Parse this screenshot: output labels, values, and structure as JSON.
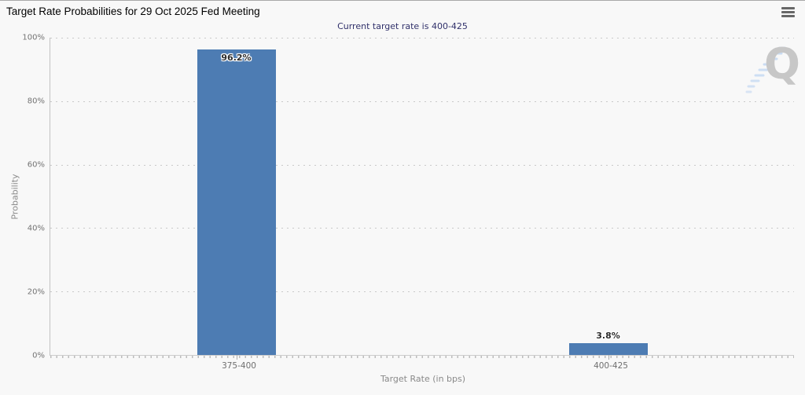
{
  "toolbar": {
    "menu_icon": "hamburger-menu-icon"
  },
  "watermark": {
    "letter": "Q"
  },
  "colors": {
    "background": "#f8f8f8",
    "bar": "#4d7cb3",
    "subtitle_text": "#30306a",
    "grid_dots": "#c9c9c9",
    "axis_line": "#c2c2c2",
    "tick_label": "#737373",
    "axis_title": "#8a8a8a",
    "watermark_grey": "#c7c7c7",
    "watermark_blue": "#c3d8f2"
  },
  "chart_data": {
    "type": "bar",
    "title": "Target Rate Probabilities for 29 Oct 2025 Fed Meeting",
    "subtitle": "Current target rate is 400-425",
    "categories": [
      "375-400",
      "400-425"
    ],
    "values": [
      96.2,
      3.8
    ],
    "value_labels": [
      "96.2%",
      "3.8%"
    ],
    "xlabel": "Target Rate (in bps)",
    "ylabel": "Probability",
    "ylim": [
      0,
      100
    ],
    "yticks": [
      "0%",
      "20%",
      "40%",
      "60%",
      "80%",
      "100%"
    ],
    "grid": "dotted horizontal gridlines at 20% intervals",
    "legend": "none",
    "bar_color": "#4d7cb3"
  }
}
